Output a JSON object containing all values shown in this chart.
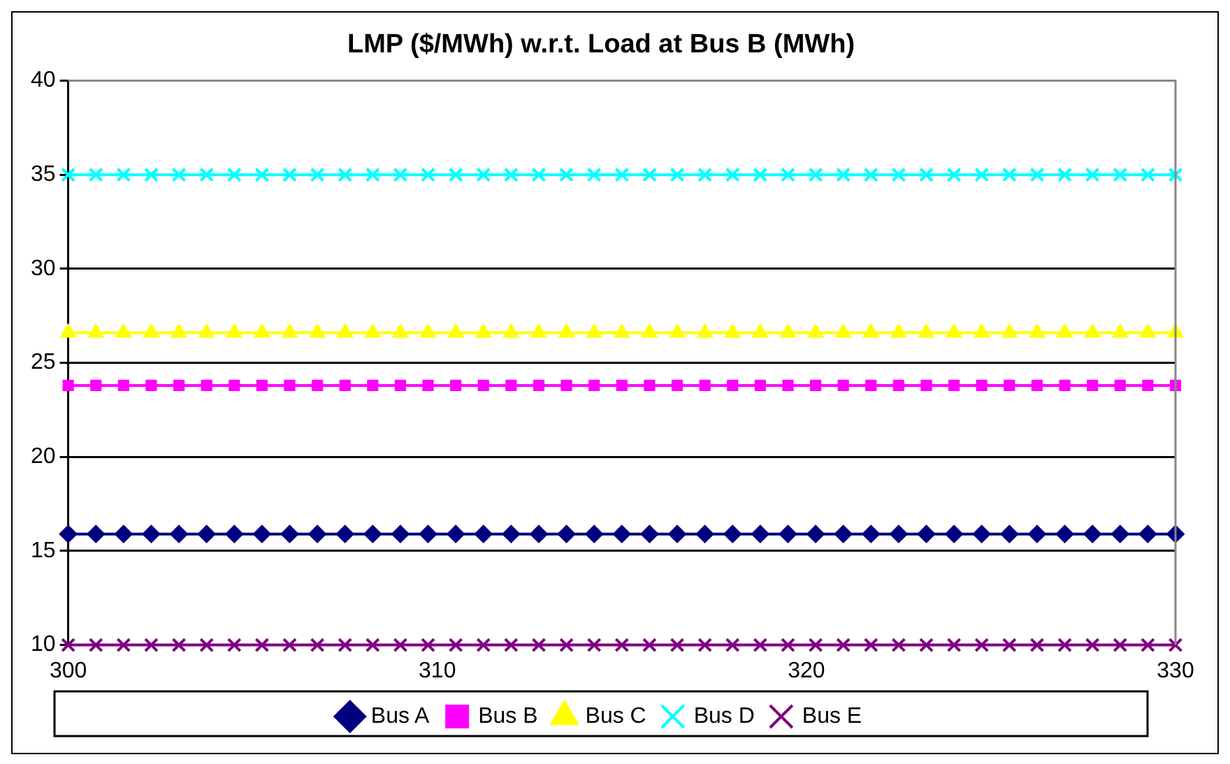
{
  "chart_data": {
    "type": "line",
    "title": "LMP ($/MWh) w.r.t. Load at Bus B (MWh)",
    "x": [
      300,
      300.75,
      301.5,
      302.25,
      303,
      303.75,
      304.5,
      305.25,
      306,
      306.75,
      307.5,
      308.25,
      309,
      309.75,
      310.5,
      311.25,
      312,
      312.75,
      313.5,
      314.25,
      315,
      315.75,
      316.5,
      317.25,
      318,
      318.75,
      319.5,
      320.25,
      321,
      321.75,
      322.5,
      323.25,
      324,
      324.75,
      325.5,
      326.25,
      327,
      327.75,
      328.5,
      329.25,
      330
    ],
    "series": [
      {
        "name": "Bus A",
        "color": "#000080",
        "marker": "diamond",
        "values": [
          15.9,
          15.9,
          15.9,
          15.9,
          15.9,
          15.9,
          15.9,
          15.9,
          15.9,
          15.9,
          15.9,
          15.9,
          15.9,
          15.9,
          15.9,
          15.9,
          15.9,
          15.9,
          15.9,
          15.9,
          15.9,
          15.9,
          15.9,
          15.9,
          15.9,
          15.9,
          15.9,
          15.9,
          15.9,
          15.9,
          15.9,
          15.9,
          15.9,
          15.9,
          15.9,
          15.9,
          15.9,
          15.9,
          15.9,
          15.9,
          15.9
        ]
      },
      {
        "name": "Bus B",
        "color": "#ff00ff",
        "marker": "square",
        "values": [
          23.8,
          23.8,
          23.8,
          23.8,
          23.8,
          23.8,
          23.8,
          23.8,
          23.8,
          23.8,
          23.8,
          23.8,
          23.8,
          23.8,
          23.8,
          23.8,
          23.8,
          23.8,
          23.8,
          23.8,
          23.8,
          23.8,
          23.8,
          23.8,
          23.8,
          23.8,
          23.8,
          23.8,
          23.8,
          23.8,
          23.8,
          23.8,
          23.8,
          23.8,
          23.8,
          23.8,
          23.8,
          23.8,
          23.8,
          23.8,
          23.8
        ]
      },
      {
        "name": "Bus C",
        "color": "#ffff00",
        "marker": "triangle",
        "values": [
          26.6,
          26.6,
          26.6,
          26.6,
          26.6,
          26.6,
          26.6,
          26.6,
          26.6,
          26.6,
          26.6,
          26.6,
          26.6,
          26.6,
          26.6,
          26.6,
          26.6,
          26.6,
          26.6,
          26.6,
          26.6,
          26.6,
          26.6,
          26.6,
          26.6,
          26.6,
          26.6,
          26.6,
          26.6,
          26.6,
          26.6,
          26.6,
          26.6,
          26.6,
          26.6,
          26.6,
          26.6,
          26.6,
          26.6,
          26.6,
          26.6
        ]
      },
      {
        "name": "Bus D",
        "color": "#00ffff",
        "marker": "cross",
        "values": [
          35,
          35,
          35,
          35,
          35,
          35,
          35,
          35,
          35,
          35,
          35,
          35,
          35,
          35,
          35,
          35,
          35,
          35,
          35,
          35,
          35,
          35,
          35,
          35,
          35,
          35,
          35,
          35,
          35,
          35,
          35,
          35,
          35,
          35,
          35,
          35,
          35,
          35,
          35,
          35,
          35
        ]
      },
      {
        "name": "Bus E",
        "color": "#800080",
        "marker": "cross",
        "values": [
          10,
          10,
          10,
          10,
          10,
          10,
          10,
          10,
          10,
          10,
          10,
          10,
          10,
          10,
          10,
          10,
          10,
          10,
          10,
          10,
          10,
          10,
          10,
          10,
          10,
          10,
          10,
          10,
          10,
          10,
          10,
          10,
          10,
          10,
          10,
          10,
          10,
          10,
          10,
          10,
          10
        ]
      }
    ],
    "xlim": [
      300,
      330
    ],
    "xticks": [
      300,
      310,
      320,
      330
    ],
    "ylim": [
      10,
      40
    ],
    "yticks": [
      10,
      15,
      20,
      25,
      30,
      35,
      40
    ],
    "grid": "y",
    "legend": "bottom",
    "line_style": "solid"
  }
}
